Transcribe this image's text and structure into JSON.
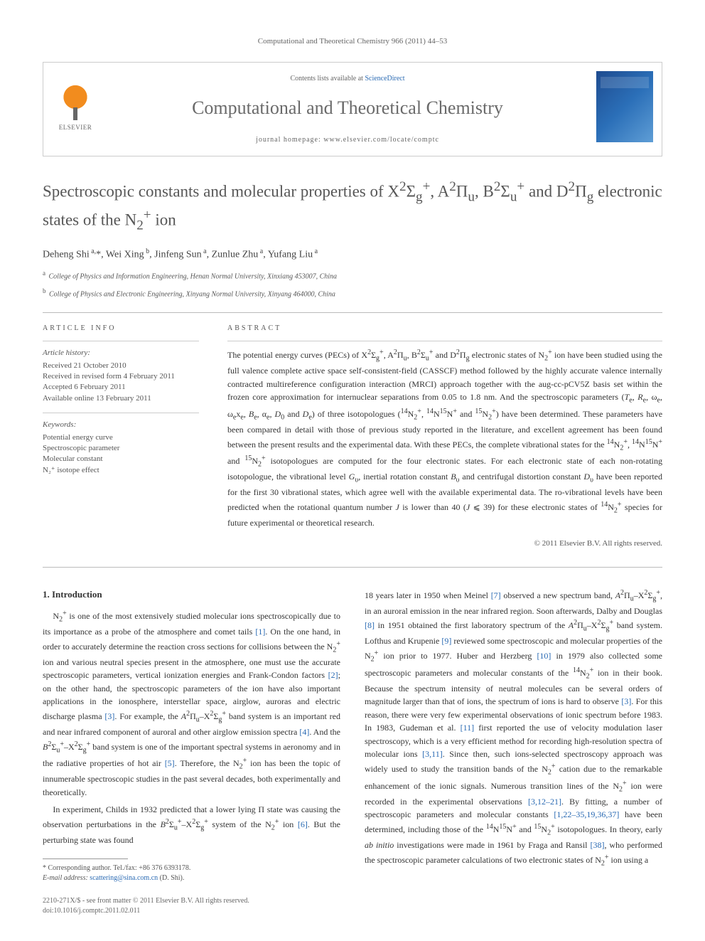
{
  "journal_ref": "Computational and Theoretical Chemistry 966 (2011) 44–53",
  "header": {
    "elsevier_label": "ELSEVIER",
    "contents_prefix": "Contents lists available at ",
    "contents_link": "ScienceDirect",
    "journal_name": "Computational and Theoretical Chemistry",
    "homepage_prefix": "journal homepage: ",
    "homepage_url": "www.elsevier.com/locate/comptc"
  },
  "title_html": "Spectroscopic constants and molecular properties of X<sup>2</sup>Σ<sub>g</sub><sup>+</sup>, A<sup>2</sup>Π<sub>u</sub>, B<sup>2</sup>Σ<sub>u</sub><sup>+</sup> and D<sup>2</sup>Π<sub>g</sub> electronic states of the N<sub>2</sub><sup>+</sup> ion",
  "authors_html": "Deheng Shi<sup> a,</sup>*, Wei Xing<sup> b</sup>, Jinfeng Sun<sup> a</sup>, Zunlue Zhu<sup> a</sup>, Yufang Liu<sup> a</sup>",
  "affiliations": [
    {
      "sup": "a",
      "text": "College of Physics and Information Engineering, Henan Normal University, Xinxiang 453007, China"
    },
    {
      "sup": "b",
      "text": "College of Physics and Electronic Engineering, Xinyang Normal University, Xinyang 464000, China"
    }
  ],
  "article_info_head": "ARTICLE INFO",
  "abstract_head": "ABSTRACT",
  "history": {
    "head": "Article history:",
    "lines": [
      "Received 21 October 2010",
      "Received in revised form 4 February 2011",
      "Accepted 6 February 2011",
      "Available online 13 February 2011"
    ]
  },
  "keywords": {
    "head": "Keywords:",
    "lines": [
      "Potential energy curve",
      "Spectroscopic parameter",
      "Molecular constant",
      "N₂⁺ isotope effect"
    ]
  },
  "abstract_html": "The potential energy curves (PECs) of X<sup>2</sup>Σ<sub>g</sub><sup>+</sup>, A<sup>2</sup>Π<sub>u</sub>, B<sup>2</sup>Σ<sub>u</sub><sup>+</sup> and D<sup>2</sup>Π<sub>g</sub> electronic states of N<sub>2</sub><sup>+</sup> ion have been studied using the full valence complete active space self-consistent-field (CASSCF) method followed by the highly accurate valence internally contracted multireference configuration interaction (MRCI) approach together with the aug-cc-pCV5Z basis set within the frozen core approximation for internuclear separations from 0.05 to 1.8 nm. And the spectroscopic parameters (<i>T</i><sub>e</sub>, <i>R</i><sub>e</sub>, ω<sub>e</sub>, ω<sub>e</sub>x<sub>e</sub>, <i>B</i><sub>e</sub>, α<sub>e</sub>, <i>D</i><sub>0</sub> and <i>D</i><sub>e</sub>) of three isotopologues (<sup>14</sup>N<sub>2</sub><sup>+</sup>, <sup>14</sup>N<sup>15</sup>N<sup>+</sup> and <sup>15</sup>N<sub>2</sub><sup>+</sup>) have been determined. These parameters have been compared in detail with those of previous study reported in the literature, and excellent agreement has been found between the present results and the experimental data. With these PECs, the complete vibrational states for the <sup>14</sup>N<sub>2</sub><sup>+</sup>, <sup>14</sup>N<sup>15</sup>N<sup>+</sup> and <sup>15</sup>N<sub>2</sub><sup>+</sup> isotopologues are computed for the four electronic states. For each electronic state of each non-rotating isotopologue, the vibrational level <i>G</i><sub>υ</sub>, inertial rotation constant <i>B</i><sub>υ</sub> and centrifugal distortion constant <i>D</i><sub>υ</sub> have been reported for the first 30 vibrational states, which agree well with the available experimental data. The ro-vibrational levels have been predicted when the rotational quantum number <i>J</i> is lower than 40 (<i>J</i> ⩽ 39) for these electronic states of <sup>14</sup>N<sub>2</sub><sup>+</sup> species for future experimental or theoretical research.",
  "copyright": "© 2011 Elsevier B.V. All rights reserved.",
  "section1_head": "1. Introduction",
  "para1_html": "N<sub>2</sub><sup>+</sup> is one of the most extensively studied molecular ions spectroscopically due to its importance as a probe of the atmosphere and comet tails <span class=\"ref\">[1]</span>. On the one hand, in order to accurately determine the reaction cross sections for collisions between the N<sub>2</sub><sup>+</sup> ion and various neutral species present in the atmosphere, one must use the accurate spectroscopic parameters, vertical ionization energies and Frank-Condon factors <span class=\"ref\">[2]</span>; on the other hand, the spectroscopic parameters of the ion have also important applications in the ionosphere, interstellar space, airglow, auroras and electric discharge plasma <span class=\"ref\">[3]</span>. For example, the <i>A</i><sup>2</sup>Π<sub>u</sub>–X<sup>2</sup>Σ<sub>g</sub><sup>+</sup> band system is an important red and near infrared component of auroral and other airglow emission spectra <span class=\"ref\">[4]</span>. And the <i>B</i><sup>2</sup>Σ<sub>u</sub><sup>+</sup>–X<sup>2</sup>Σ<sub>g</sub><sup>+</sup> band system is one of the important spectral systems in aeronomy and in the radiative properties of hot air <span class=\"ref\">[5]</span>. Therefore, the N<sub>2</sub><sup>+</sup> ion has been the topic of innumerable spectroscopic studies in the past several decades, both experimentally and theoretically.",
  "para2_html": "In experiment, Childs in 1932 predicted that a lower lying Π state was causing the observation perturbations in the <i>B</i><sup>2</sup>Σ<sub>u</sub><sup>+</sup>–X<sup>2</sup>Σ<sub>g</sub><sup>+</sup> system of the N<sub>2</sub><sup>+</sup> ion <span class=\"ref\">[6]</span>. But the perturbing state was found",
  "para3_html": "18 years later in 1950 when Meinel <span class=\"ref\">[7]</span> observed a new spectrum band, <i>A</i><sup>2</sup>Π<sub>u</sub>–X<sup>2</sup>Σ<sub>g</sub><sup>+</sup>, in an auroral emission in the near infrared region. Soon afterwards, Dalby and Douglas <span class=\"ref\">[8]</span> in 1951 obtained the first laboratory spectrum of the <i>A</i><sup>2</sup>Π<sub>u</sub>–X<sup>2</sup>Σ<sub>g</sub><sup>+</sup> band system. Lofthus and Krupenie <span class=\"ref\">[9]</span> reviewed some spectroscopic and molecular properties of the N<sub>2</sub><sup>+</sup> ion prior to 1977. Huber and Herzberg <span class=\"ref\">[10]</span> in 1979 also collected some spectroscopic parameters and molecular constants of the <sup>14</sup>N<sub>2</sub><sup>+</sup> ion in their book. Because the spectrum intensity of neutral molecules can be several orders of magnitude larger than that of ions, the spectrum of ions is hard to observe <span class=\"ref\">[3]</span>. For this reason, there were very few experimental observations of ionic spectrum before 1983. In 1983, Gudeman et al. <span class=\"ref\">[11]</span> first reported the use of velocity modulation laser spectroscopy, which is a very efficient method for recording high-resolution spectra of molecular ions <span class=\"ref\">[3,11]</span>. Since then, such ions-selected spectroscopy approach was widely used to study the transition bands of the N<sub>2</sub><sup>+</sup> cation due to the remarkable enhancement of the ionic signals. Numerous transition lines of the N<sub>2</sub><sup>+</sup> ion were recorded in the experimental observations <span class=\"ref\">[3,12–21]</span>. By fitting, a number of spectroscopic parameters and molecular constants <span class=\"ref\">[1,22–35,19,36,37]</span> have been determined, including those of the <sup>14</sup>N<sup>15</sup>N<sup>+</sup> and <sup>15</sup>N<sub>2</sub><sup>+</sup> isotopologues. In theory, early <i>ab initio</i> investigations were made in 1961 by Fraga and Ransil <span class=\"ref\">[38]</span>, who performed the spectroscopic parameter calculations of two electronic states of N<sub>2</sub><sup>+</sup> ion using a",
  "footnote": {
    "corr": "* Corresponding author. Tel./fax: +86 376 6393178.",
    "email_label": "E-mail address:",
    "email": "scattering@sina.com.cn",
    "email_who": "(D. Shi)."
  },
  "footer": {
    "line1": "2210-271X/$ - see front matter © 2011 Elsevier B.V. All rights reserved.",
    "line2": "doi:10.1016/j.comptc.2011.02.011"
  },
  "colors": {
    "link": "#2a6ab3",
    "text": "#333333",
    "muted": "#666666",
    "rule": "#bbbbbb",
    "journal_name": "#6a6a6a",
    "title": "#575757",
    "cover_grad_a": "#1e4b8f",
    "cover_grad_b": "#5f9ed6",
    "elsevier_orange": "#f28c1e"
  }
}
